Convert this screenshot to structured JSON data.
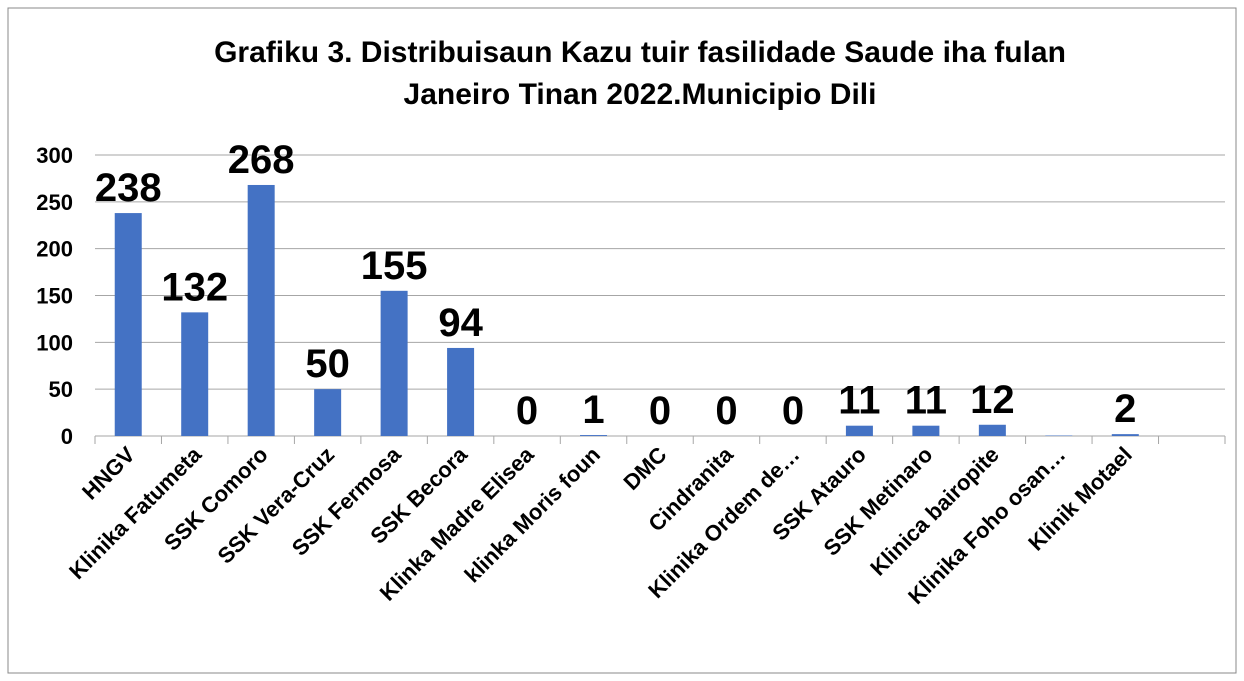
{
  "chart_data": {
    "type": "bar",
    "title": "Grafiku 3. Distribuisaun Kazu tuir fasilidade Saude iha fulan",
    "subtitle": "Janeiro Tinan 2022.Municipio Dili",
    "categories": [
      "HNGV",
      "Klinika Fatumeta",
      "SSK Comoro",
      "SSK Vera-Cruz",
      "SSK Fermosa",
      "SSK Becora",
      "Klinka Madre Elisea",
      "klinka Moris foun",
      "DMC",
      "Cindranita",
      "Klinika Ordem de…",
      "SSK Atauro",
      "SSK Metinaro",
      "Klinica bairopite",
      "Klinika Foho osan…",
      "Klinik Motael",
      null
    ],
    "values": [
      238,
      132,
      268,
      50,
      155,
      94,
      0,
      1,
      0,
      0,
      0,
      11,
      11,
      12,
      0.5,
      2,
      null
    ],
    "value_labels": [
      "238",
      "132",
      "268",
      "50",
      "155",
      "94",
      "0",
      "1",
      "0",
      "0",
      "0",
      "11",
      "11",
      "12",
      null,
      "2",
      null
    ],
    "color": "#4472c4",
    "ylim": [
      0,
      300
    ],
    "yticks": [
      0,
      50,
      100,
      150,
      200,
      250,
      300
    ],
    "grid": true
  }
}
